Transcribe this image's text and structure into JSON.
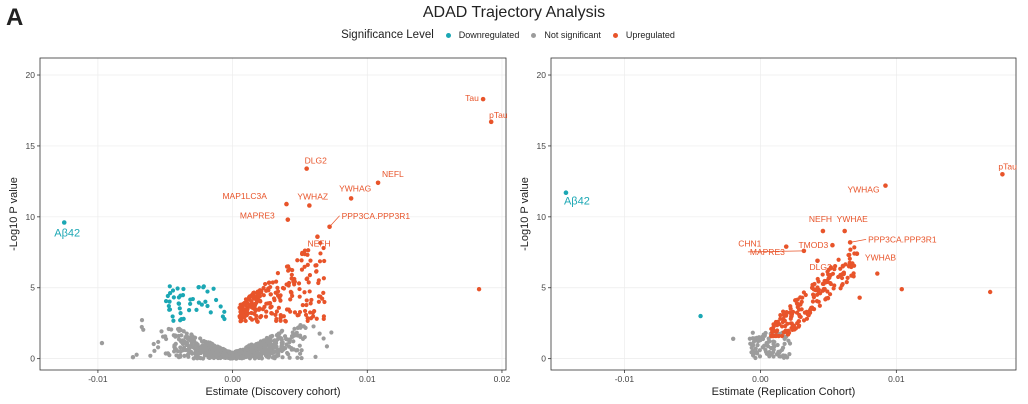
{
  "panel_letter": "A",
  "title": "ADAD Trajectory Analysis",
  "legend": {
    "title": "Significance Level",
    "items": [
      {
        "label": "Downregulated",
        "color": "#1ba7b4"
      },
      {
        "label": "Not significant",
        "color": "#9c9c9c"
      },
      {
        "label": "Upregulated",
        "color": "#e8542a"
      }
    ]
  },
  "chart_data": [
    {
      "type": "scatter",
      "xlabel": "Estimate (Discovery cohort)",
      "ylabel": "-Log10 P value",
      "xlim": [
        -0.0143,
        0.0203
      ],
      "ylim": [
        -0.8,
        21.2
      ],
      "xticks": [
        {
          "v": -0.01,
          "label": "-0.01"
        },
        {
          "v": 0.0,
          "label": "0.00"
        },
        {
          "v": 0.01,
          "label": "0.01"
        },
        {
          "v": 0.02,
          "label": "0.02"
        }
      ],
      "yticks": [
        0,
        5,
        10,
        15,
        20
      ],
      "labeled_points": [
        {
          "label": "Tau",
          "x": 0.0186,
          "y": 18.3,
          "group": "up"
        },
        {
          "label": "pTau",
          "x": 0.0192,
          "y": 16.7,
          "group": "up"
        },
        {
          "label": "Aβ42",
          "x": -0.0125,
          "y": 9.6,
          "group": "down"
        },
        {
          "label": "DLG2",
          "x": 0.0055,
          "y": 13.4,
          "group": "up"
        },
        {
          "label": "NEFL",
          "x": 0.0108,
          "y": 12.4,
          "group": "up"
        },
        {
          "label": "YWHAG",
          "x": 0.0088,
          "y": 11.3,
          "group": "up"
        },
        {
          "label": "MAP1LC3A",
          "x": 0.004,
          "y": 10.9,
          "group": "up"
        },
        {
          "label": "YWHAZ",
          "x": 0.0057,
          "y": 10.8,
          "group": "up"
        },
        {
          "label": "MAPRE3",
          "x": 0.0041,
          "y": 9.8,
          "group": "up"
        },
        {
          "label": "PPP3CA.PPP3R1",
          "x": 0.0072,
          "y": 9.3,
          "group": "up"
        },
        {
          "label": "NEFH",
          "x": 0.0063,
          "y": 8.6,
          "group": "up"
        }
      ],
      "extra_points": [
        {
          "x": 0.0183,
          "y": 4.9,
          "group": "up"
        },
        {
          "x": -0.0097,
          "y": 1.1,
          "group": "ns"
        },
        {
          "x": -0.0074,
          "y": 0.1,
          "group": "ns"
        }
      ],
      "clouds": [
        {
          "group": "ns",
          "n": 650,
          "x": [
            -0.0078,
            0.0078
          ],
          "y": [
            0,
            3.0
          ],
          "shape": "v",
          "slope": 430,
          "seed": 11
        },
        {
          "group": "down",
          "n": 45,
          "x": [
            -0.005,
            -0.0006
          ],
          "y": [
            2.6,
            5.2
          ],
          "shape": "box",
          "seed": 23
        },
        {
          "group": "up",
          "n": 230,
          "x": [
            0.0005,
            0.007
          ],
          "y": [
            2.6,
            8.2
          ],
          "shape": "wedge",
          "slope": 800,
          "seed": 37
        }
      ]
    },
    {
      "type": "scatter",
      "xlabel": "Estimate (Replication Cohort)",
      "ylabel": "-Log10 P value",
      "xlim": [
        -0.0154,
        0.0188
      ],
      "ylim": [
        -0.8,
        21.2
      ],
      "xticks": [
        {
          "v": -0.01,
          "label": "-0.01"
        },
        {
          "v": 0.0,
          "label": "0.00"
        },
        {
          "v": 0.01,
          "label": "0.01"
        }
      ],
      "yticks": [
        0,
        5,
        10,
        15,
        20
      ],
      "labeled_points": [
        {
          "label": "pTau",
          "x": 0.0178,
          "y": 13.0,
          "group": "up"
        },
        {
          "label": "Aβ42",
          "x": -0.0143,
          "y": 11.7,
          "group": "down"
        },
        {
          "label": "YWHAG",
          "x": 0.0092,
          "y": 12.2,
          "group": "up"
        },
        {
          "label": "NEFH",
          "x": 0.0046,
          "y": 9.0,
          "group": "up"
        },
        {
          "label": "YWHAE",
          "x": 0.0062,
          "y": 9.0,
          "group": "up"
        },
        {
          "label": "CHN1",
          "x": 0.0019,
          "y": 7.9,
          "group": "up"
        },
        {
          "label": "TMOD3",
          "x": 0.0053,
          "y": 8.0,
          "group": "up"
        },
        {
          "label": "PPP3CA.PPP3R1",
          "x": 0.0066,
          "y": 8.2,
          "group": "up"
        },
        {
          "label": "MAPRE3",
          "x": 0.0032,
          "y": 7.6,
          "group": "up"
        },
        {
          "label": "YWHAB",
          "x": 0.0071,
          "y": 7.4,
          "group": "up"
        },
        {
          "label": "DLG2",
          "x": 0.0042,
          "y": 6.9,
          "group": "up"
        }
      ],
      "extra_points": [
        {
          "x": -0.0044,
          "y": 3.0,
          "group": "down"
        },
        {
          "x": 0.0169,
          "y": 4.7,
          "group": "up"
        },
        {
          "x": 0.0104,
          "y": 4.9,
          "group": "up"
        },
        {
          "x": 0.0073,
          "y": 4.3,
          "group": "up"
        },
        {
          "x": 0.0086,
          "y": 6.0,
          "group": "up"
        },
        {
          "x": -0.002,
          "y": 1.4,
          "group": "ns"
        }
      ],
      "clouds": [
        {
          "group": "ns",
          "n": 90,
          "x": [
            -0.0008,
            0.0022
          ],
          "y": [
            0,
            1.9
          ],
          "shape": "box",
          "seed": 53
        },
        {
          "group": "up",
          "n": 190,
          "x": [
            0.0008,
            0.007
          ],
          "y": [
            1.6,
            7.0
          ],
          "shape": "diag",
          "seed": 71
        }
      ]
    }
  ]
}
